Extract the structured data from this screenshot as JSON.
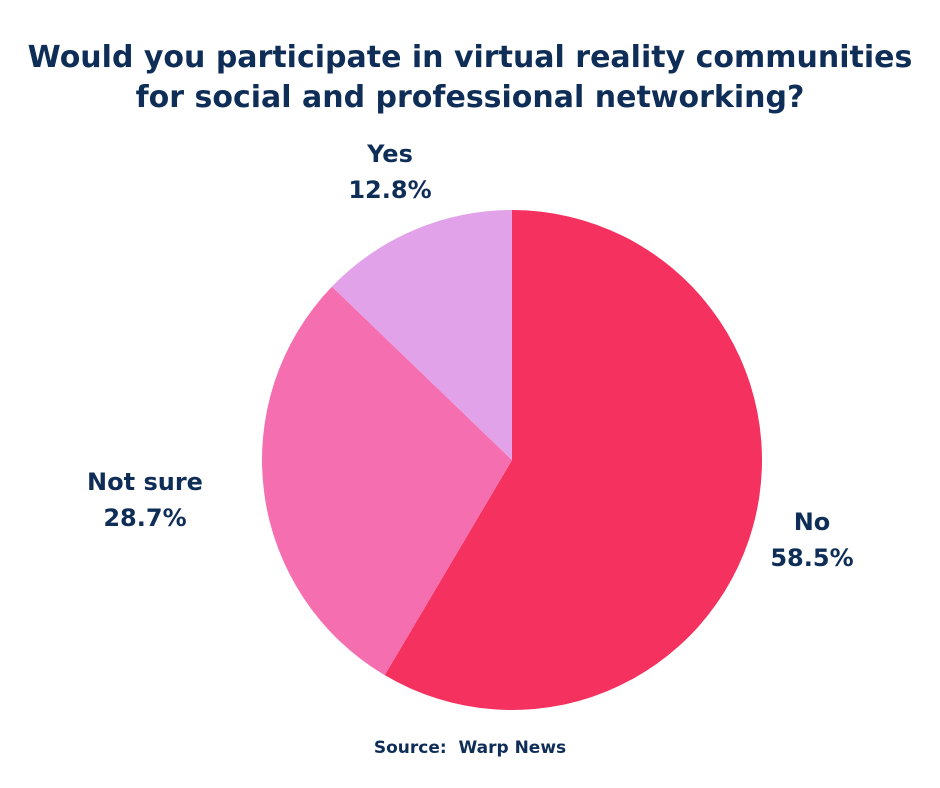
{
  "chart_data": {
    "type": "pie",
    "title": "Would you participate in virtual reality communities for social and professional networking?",
    "title_lines": [
      "Would you participate in virtual reality communities",
      "for social and professional networking?"
    ],
    "slices": [
      {
        "label": "No",
        "value": 58.5,
        "value_label": "58.5%",
        "color": "#f5315f"
      },
      {
        "label": "Not sure",
        "value": 28.7,
        "value_label": "28.7%",
        "color": "#f56fb0"
      },
      {
        "label": "Yes",
        "value": 12.8,
        "value_label": "12.8%",
        "color": "#e2a2ea"
      }
    ],
    "start_angle": "12 o'clock",
    "direction": "clockwise",
    "legend": "none (labels beside slices)"
  },
  "source": "Source:  Warp News",
  "colors": {
    "text": "#0f2e57",
    "background": "#ffffff"
  }
}
